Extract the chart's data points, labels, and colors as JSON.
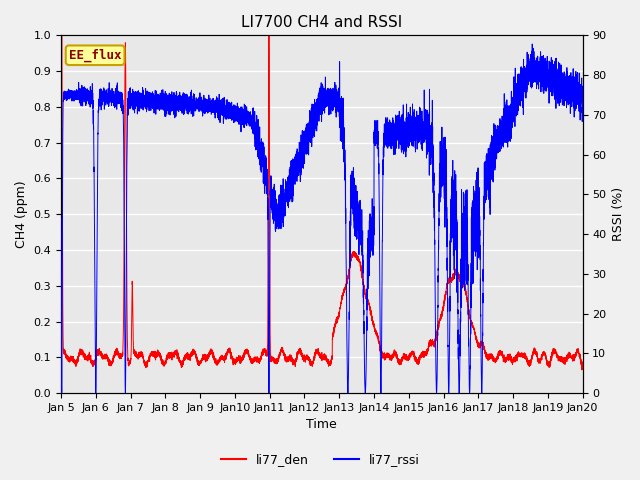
{
  "title": "LI7700 CH4 and RSSI",
  "xlabel": "Time",
  "ylabel_left": "CH4 (ppm)",
  "ylabel_right": "RSSI (%)",
  "ylim_left": [
    0.0,
    1.0
  ],
  "ylim_right": [
    0,
    90
  ],
  "yticks_left": [
    0.0,
    0.1,
    0.2,
    0.3,
    0.4,
    0.5,
    0.6,
    0.7,
    0.8,
    0.9,
    1.0
  ],
  "yticks_right": [
    0,
    10,
    20,
    30,
    40,
    50,
    60,
    70,
    80,
    90
  ],
  "background_color": "#e8e8e8",
  "fig_background": "#f0f0f0",
  "legend_labels": [
    "li77_den",
    "li77_rssi"
  ],
  "annotation_text": "EE_flux",
  "annotation_color": "#8b0000",
  "annotation_bg": "#ffff99",
  "annotation_border": "#c8a000",
  "x_tick_days": [
    5,
    6,
    7,
    8,
    9,
    10,
    11,
    12,
    13,
    14,
    15,
    16,
    17,
    18,
    19,
    20
  ],
  "title_fontsize": 11,
  "axis_fontsize": 9,
  "tick_fontsize": 8
}
